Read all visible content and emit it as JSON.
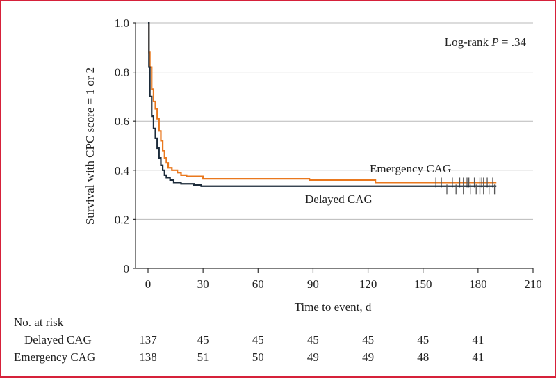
{
  "chart_data": {
    "type": "line",
    "subtype": "kaplan-meier",
    "ylabel": "Survival with CPC score = 1 or 2",
    "xlabel": "Time to event, d",
    "xlim": [
      0,
      210
    ],
    "ylim": [
      0,
      1.0
    ],
    "x_ticks": [
      "0",
      "30",
      "60",
      "90",
      "120",
      "150",
      "180",
      "210"
    ],
    "y_ticks": [
      "0",
      "0.2",
      "0.4",
      "0.6",
      "0.8",
      "1.0"
    ],
    "grid": "horizontal",
    "annotation": {
      "prefix": "Log-rank ",
      "p": "P",
      "suffix": " = .34"
    },
    "series": [
      {
        "name": "Emergency CAG",
        "color": "#e9781e",
        "steps": [
          [
            0,
            1.0
          ],
          [
            0.5,
            0.88
          ],
          [
            1,
            0.82
          ],
          [
            2,
            0.73
          ],
          [
            3,
            0.68
          ],
          [
            4,
            0.65
          ],
          [
            5,
            0.61
          ],
          [
            6,
            0.56
          ],
          [
            7,
            0.52
          ],
          [
            8,
            0.48
          ],
          [
            9,
            0.45
          ],
          [
            10,
            0.43
          ],
          [
            11,
            0.41
          ],
          [
            13,
            0.4
          ],
          [
            16,
            0.39
          ],
          [
            18,
            0.38
          ],
          [
            21,
            0.375
          ],
          [
            30,
            0.365
          ],
          [
            88,
            0.36
          ],
          [
            124,
            0.35
          ],
          [
            190,
            0.35
          ]
        ],
        "censor_x": [
          157,
          160,
          166,
          170,
          172,
          174,
          175,
          178,
          181,
          182,
          183,
          185,
          188
        ]
      },
      {
        "name": "Delayed CAG",
        "color": "#1c2b3a",
        "steps": [
          [
            0,
            1.0
          ],
          [
            0.5,
            0.82
          ],
          [
            1,
            0.7
          ],
          [
            2,
            0.62
          ],
          [
            3,
            0.57
          ],
          [
            4,
            0.53
          ],
          [
            5,
            0.49
          ],
          [
            6,
            0.45
          ],
          [
            7,
            0.42
          ],
          [
            8,
            0.4
          ],
          [
            9,
            0.38
          ],
          [
            10,
            0.37
          ],
          [
            12,
            0.36
          ],
          [
            14,
            0.35
          ],
          [
            18,
            0.345
          ],
          [
            25,
            0.34
          ],
          [
            29,
            0.335
          ],
          [
            190,
            0.335
          ]
        ],
        "censor_x": [
          163,
          168,
          172,
          176,
          179,
          181,
          183,
          186,
          189
        ],
        "censor_y": 0.322
      }
    ],
    "labels": {
      "emergency": "Emergency CAG",
      "delayed": "Delayed CAG"
    },
    "risk_table": {
      "header": "No. at risk",
      "rows": [
        {
          "label": "Delayed CAG",
          "values": [
            "137",
            "45",
            "45",
            "45",
            "45",
            "45",
            "41"
          ]
        },
        {
          "label": "Emergency CAG",
          "values": [
            "138",
            "51",
            "50",
            "49",
            "49",
            "48",
            "41"
          ]
        }
      ]
    }
  },
  "colors": {
    "border": "#d6213a",
    "grid": "#b9b9b9",
    "axis": "#333333"
  }
}
